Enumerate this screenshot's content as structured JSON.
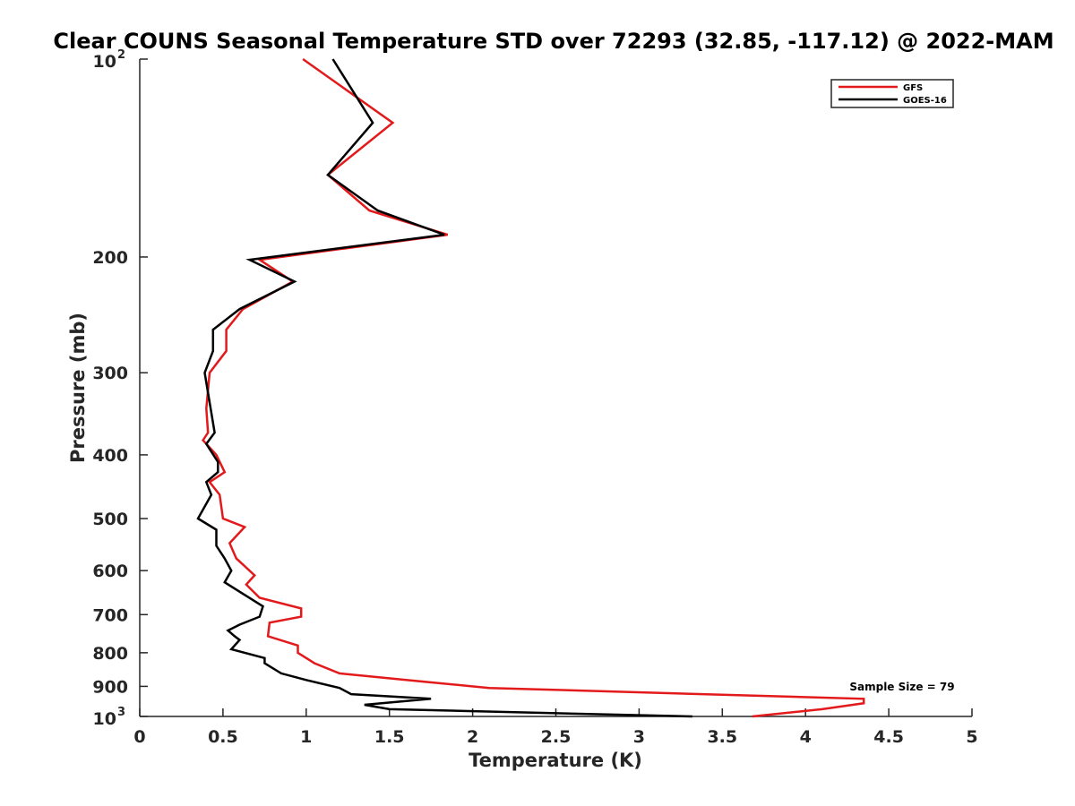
{
  "chart_data": {
    "type": "line",
    "title": "Clear COUNS Seasonal Temperature STD over 72293 (32.85, -117.12) @ 2022-MAM",
    "xlabel": "Temperature (K)",
    "ylabel": "Pressure (mb)",
    "xlim": [
      0,
      5
    ],
    "ylim": [
      100,
      1000
    ],
    "yscale": "log",
    "yreversed": true,
    "grid": false,
    "legend_position": "top-right",
    "x_ticks": [
      0,
      0.5,
      1,
      1.5,
      2,
      2.5,
      3,
      3.5,
      4,
      4.5,
      5
    ],
    "x_tick_labels": [
      "0",
      "0.5",
      "1",
      "1.5",
      "2",
      "2.5",
      "3",
      "3.5",
      "4",
      "4.5",
      "5"
    ],
    "y_ticks": [
      {
        "value": 100,
        "base": "10",
        "exp": "2"
      },
      {
        "value": 200,
        "label": "200"
      },
      {
        "value": 300,
        "label": "300"
      },
      {
        "value": 400,
        "label": "400"
      },
      {
        "value": 500,
        "label": "500"
      },
      {
        "value": 600,
        "label": "600"
      },
      {
        "value": 700,
        "label": "700"
      },
      {
        "value": 800,
        "label": "800"
      },
      {
        "value": 900,
        "label": "900"
      },
      {
        "value": 1000,
        "base": "10",
        "exp": "3"
      }
    ],
    "annotation": "Sample Size = 79",
    "series": [
      {
        "name": "GFS",
        "color": "#e31a1c",
        "points": [
          [
            0.98,
            100
          ],
          [
            1.52,
            125
          ],
          [
            1.13,
            150
          ],
          [
            1.38,
            170
          ],
          [
            1.85,
            185
          ],
          [
            0.72,
            202
          ],
          [
            0.92,
            218
          ],
          [
            0.62,
            240
          ],
          [
            0.52,
            258
          ],
          [
            0.52,
            278
          ],
          [
            0.42,
            300
          ],
          [
            0.4,
            340
          ],
          [
            0.41,
            370
          ],
          [
            0.38,
            380
          ],
          [
            0.46,
            400
          ],
          [
            0.51,
            425
          ],
          [
            0.42,
            440
          ],
          [
            0.48,
            460
          ],
          [
            0.5,
            500
          ],
          [
            0.63,
            515
          ],
          [
            0.54,
            545
          ],
          [
            0.58,
            575
          ],
          [
            0.69,
            610
          ],
          [
            0.64,
            630
          ],
          [
            0.72,
            660
          ],
          [
            0.97,
            685
          ],
          [
            0.97,
            705
          ],
          [
            0.78,
            720
          ],
          [
            0.77,
            755
          ],
          [
            0.95,
            780
          ],
          [
            0.95,
            800
          ],
          [
            1.05,
            830
          ],
          [
            1.2,
            860
          ],
          [
            1.6,
            880
          ],
          [
            2.1,
            905
          ],
          [
            4.35,
            940
          ],
          [
            4.35,
            955
          ],
          [
            4.1,
            975
          ],
          [
            3.68,
            1000
          ]
        ]
      },
      {
        "name": "GOES-16",
        "color": "#000000",
        "points": [
          [
            1.16,
            100
          ],
          [
            1.4,
            125
          ],
          [
            1.13,
            150
          ],
          [
            1.43,
            170
          ],
          [
            1.83,
            185
          ],
          [
            0.66,
            202
          ],
          [
            0.93,
            218
          ],
          [
            0.6,
            240
          ],
          [
            0.44,
            258
          ],
          [
            0.44,
            278
          ],
          [
            0.39,
            300
          ],
          [
            0.45,
            370
          ],
          [
            0.4,
            385
          ],
          [
            0.47,
            410
          ],
          [
            0.47,
            425
          ],
          [
            0.4,
            440
          ],
          [
            0.43,
            460
          ],
          [
            0.35,
            500
          ],
          [
            0.46,
            520
          ],
          [
            0.46,
            550
          ],
          [
            0.51,
            575
          ],
          [
            0.55,
            600
          ],
          [
            0.51,
            625
          ],
          [
            0.74,
            680
          ],
          [
            0.72,
            705
          ],
          [
            0.6,
            725
          ],
          [
            0.53,
            740
          ],
          [
            0.57,
            755
          ],
          [
            0.6,
            765
          ],
          [
            0.57,
            780
          ],
          [
            0.55,
            790
          ],
          [
            0.75,
            815
          ],
          [
            0.75,
            830
          ],
          [
            0.85,
            860
          ],
          [
            1.0,
            880
          ],
          [
            1.2,
            905
          ],
          [
            1.27,
            925
          ],
          [
            1.75,
            940
          ],
          [
            1.35,
            960
          ],
          [
            1.5,
            975
          ],
          [
            3.32,
            1000
          ]
        ]
      }
    ]
  }
}
